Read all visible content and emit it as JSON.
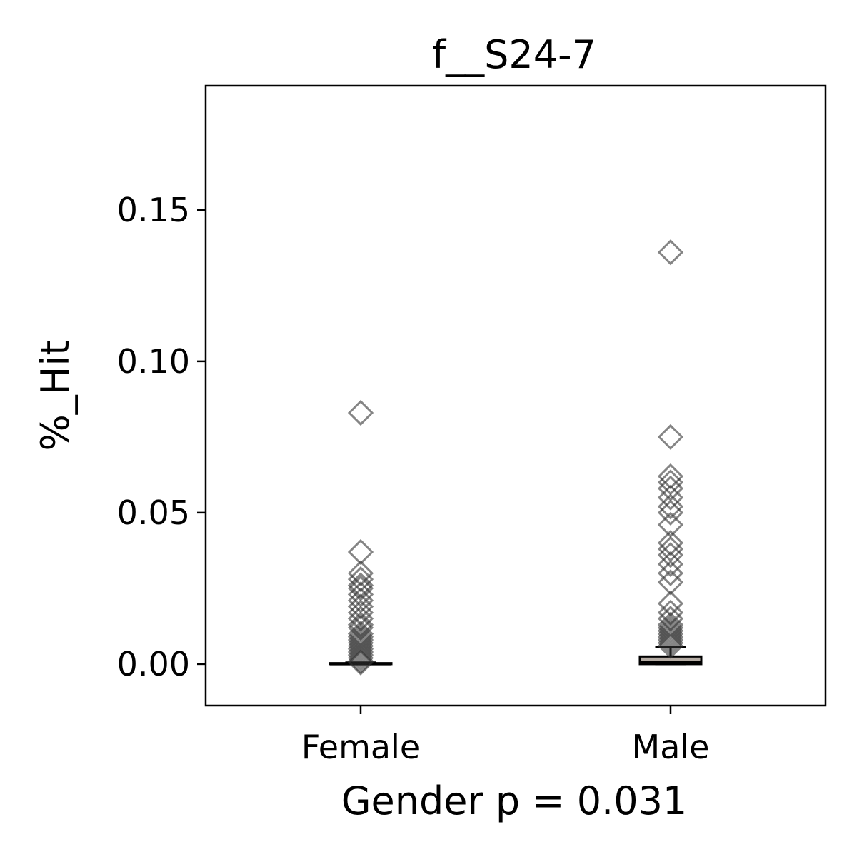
{
  "chart_data": {
    "type": "box",
    "title": "f__S24-7",
    "xlabel": "Gender p = 0.031",
    "ylabel": "%_Hit",
    "categories": [
      "Female",
      "Male"
    ],
    "boxes": [
      {
        "whislo": 0,
        "q1": 0,
        "median": 0,
        "q3": 0.0003,
        "whishi": 0.0005
      },
      {
        "whislo": 0,
        "q1": 0,
        "median": 0.0005,
        "q3": 0.0025,
        "whishi": 0.0057
      }
    ],
    "points": [
      [
        0.083,
        0.037,
        0.03,
        0.028,
        0.026,
        0.025,
        0.023,
        0.021,
        0.019,
        0.017,
        0.015,
        0.013,
        0.012,
        0.01,
        0.009,
        0.008,
        0.007,
        0.006,
        0.005,
        0.004,
        0.003,
        0.002,
        0.001,
        0.0005
      ],
      [
        0.136,
        0.075,
        0.062,
        0.06,
        0.058,
        0.055,
        0.052,
        0.05,
        0.046,
        0.04,
        0.038,
        0.036,
        0.033,
        0.03,
        0.027,
        0.02,
        0.017,
        0.015,
        0.013,
        0.012,
        0.011,
        0.01,
        0.009,
        0.008,
        0.007,
        0.006
      ]
    ],
    "box_color": "#b4aba3",
    "point_color": "#333333",
    "ylim": [
      -0.0137,
      0.191
    ],
    "yticks": [
      {
        "value": 0,
        "label": "0.00"
      },
      0.05,
      {
        "value": 0.1,
        "label": "0.10"
      },
      0.15
    ]
  }
}
